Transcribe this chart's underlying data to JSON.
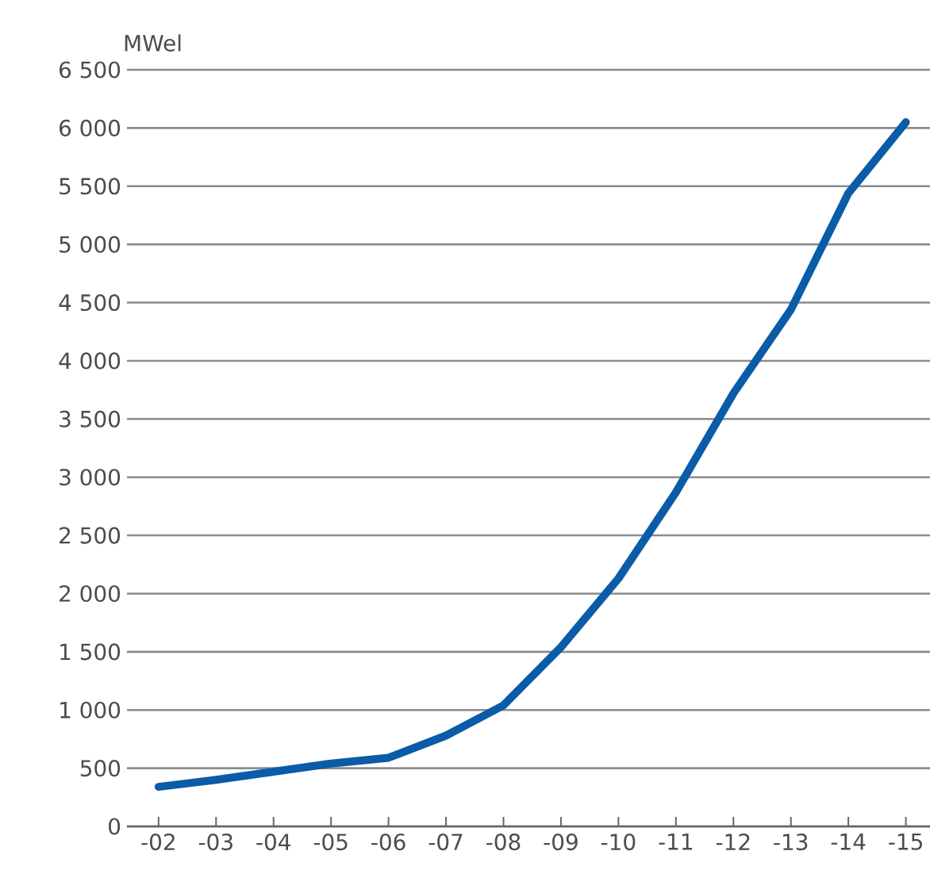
{
  "chart_data": {
    "type": "line",
    "ylabel": "MWel",
    "categories": [
      "-02",
      "-03",
      "-04",
      "-05",
      "-06",
      "-07",
      "-08",
      "-09",
      "-10",
      "-11",
      "-12",
      "-13",
      "-14",
      "-15"
    ],
    "values": [
      340,
      400,
      470,
      540,
      590,
      780,
      1040,
      1540,
      2130,
      2870,
      3720,
      4440,
      5440,
      6050
    ],
    "color": "#0a5ca8",
    "ylim": [
      0,
      6500
    ],
    "yticks": [
      0,
      {
        "value": 500,
        "label": "500"
      },
      {
        "value": 1000,
        "label": "1 000"
      },
      {
        "value": 1500,
        "label": "1 500"
      },
      {
        "value": 2000,
        "label": "2 000"
      },
      {
        "value": 2500,
        "label": "2 500"
      },
      {
        "value": 3000,
        "label": "3 000"
      },
      {
        "value": 3500,
        "label": "3 500"
      },
      {
        "value": 4000,
        "label": "4 000"
      },
      {
        "value": 4500,
        "label": "4 500"
      },
      {
        "value": 5000,
        "label": "5 000"
      },
      {
        "value": 5500,
        "label": "5 500"
      },
      {
        "value": 6000,
        "label": "6 000"
      },
      {
        "value": 6500,
        "label": "6 500"
      }
    ],
    "grid": "y"
  }
}
